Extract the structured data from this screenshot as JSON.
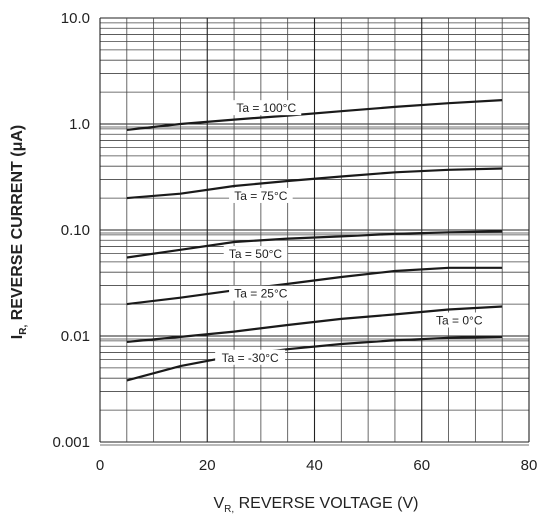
{
  "chart_data": {
    "type": "line",
    "xlabel_main": "V",
    "xlabel_sub": "R,",
    "xlabel_rest": " REVERSE VOLTAGE (V)",
    "ylabel_main": "I",
    "ylabel_sub": "R,",
    "ylabel_rest": " REVERSE CURRENT (μA)",
    "xlim": [
      0,
      80
    ],
    "ylim": [
      0.001,
      10
    ],
    "y_scale": "log",
    "grid": true,
    "x_ticks": [
      "0",
      "20",
      "40",
      "60",
      "80"
    ],
    "y_ticks": [
      "0.001",
      "0.01",
      "0.10",
      "1.0",
      "10.0"
    ],
    "series": [
      {
        "name": "Ta = 100°C",
        "x": [
          5,
          15,
          25,
          35,
          45,
          55,
          65,
          75
        ],
        "y": [
          0.88,
          1.0,
          1.1,
          1.2,
          1.32,
          1.45,
          1.57,
          1.68
        ]
      },
      {
        "name": "Ta = 75°C",
        "x": [
          5,
          15,
          25,
          35,
          45,
          55,
          65,
          75
        ],
        "y": [
          0.2,
          0.22,
          0.26,
          0.29,
          0.32,
          0.35,
          0.37,
          0.38
        ]
      },
      {
        "name": "Ta = 50°C",
        "x": [
          5,
          15,
          25,
          35,
          45,
          55,
          65,
          75
        ],
        "y": [
          0.055,
          0.065,
          0.077,
          0.083,
          0.087,
          0.092,
          0.095,
          0.097
        ]
      },
      {
        "name": "Ta = 25°C",
        "x": [
          5,
          15,
          25,
          35,
          45,
          55,
          65,
          75
        ],
        "y": [
          0.02,
          0.023,
          0.027,
          0.031,
          0.036,
          0.041,
          0.044,
          0.044
        ]
      },
      {
        "name": "Ta = 0°C",
        "x": [
          5,
          15,
          25,
          35,
          45,
          55,
          65,
          75
        ],
        "y": [
          0.0088,
          0.0098,
          0.011,
          0.0127,
          0.0145,
          0.016,
          0.0178,
          0.019
        ]
      },
      {
        "name": "Ta = -30°C",
        "x": [
          5,
          15,
          25,
          35,
          45,
          55,
          65,
          75
        ],
        "y": [
          0.0038,
          0.0052,
          0.0065,
          0.0075,
          0.0084,
          0.0091,
          0.0096,
          0.0098
        ]
      }
    ]
  }
}
